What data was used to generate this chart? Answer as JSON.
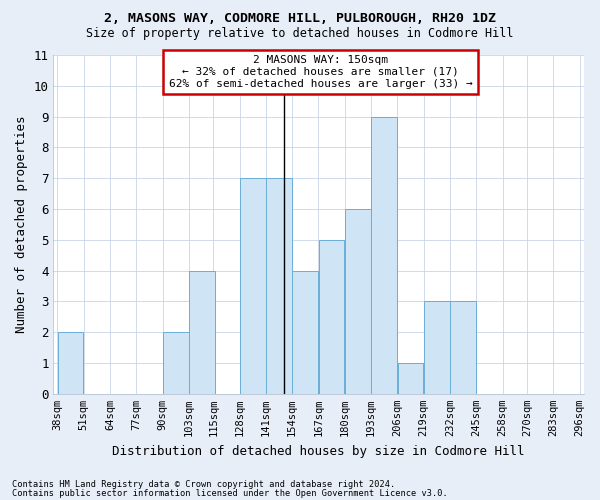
{
  "title1": "2, MASONS WAY, CODMORE HILL, PULBOROUGH, RH20 1DZ",
  "title2": "Size of property relative to detached houses in Codmore Hill",
  "xlabel": "Distribution of detached houses by size in Codmore Hill",
  "ylabel": "Number of detached properties",
  "footnote1": "Contains HM Land Registry data © Crown copyright and database right 2024.",
  "footnote2": "Contains public sector information licensed under the Open Government Licence v3.0.",
  "annotation_title": "2 MASONS WAY: 150sqm",
  "annotation_line1": "← 32% of detached houses are smaller (17)",
  "annotation_line2": "62% of semi-detached houses are larger (33) →",
  "property_size": 150,
  "bar_left_edges": [
    38,
    51,
    64,
    77,
    90,
    103,
    115,
    128,
    141,
    154,
    167,
    180,
    193,
    206,
    219,
    232,
    245,
    258,
    270,
    283
  ],
  "bar_widths": [
    13,
    13,
    13,
    13,
    13,
    13,
    13,
    13,
    13,
    13,
    13,
    13,
    13,
    13,
    13,
    13,
    13,
    13,
    13,
    13
  ],
  "bar_heights": [
    2,
    0,
    0,
    0,
    2,
    4,
    0,
    7,
    7,
    4,
    5,
    6,
    9,
    1,
    3,
    3,
    0,
    0,
    0,
    0
  ],
  "last_tick": 296,
  "bar_color": "#cfe4f5",
  "bar_edge_color": "#6aaed6",
  "highlight_line_color": "#000000",
  "grid_color": "#c8d4e8",
  "background_color": "#e8eef8",
  "plot_bg_color": "#ffffff",
  "annotation_box_color": "#ffffff",
  "annotation_box_edge": "#cc0000",
  "ylim": [
    0,
    11
  ],
  "yticks": [
    0,
    1,
    2,
    3,
    4,
    5,
    6,
    7,
    8,
    9,
    10,
    11
  ]
}
